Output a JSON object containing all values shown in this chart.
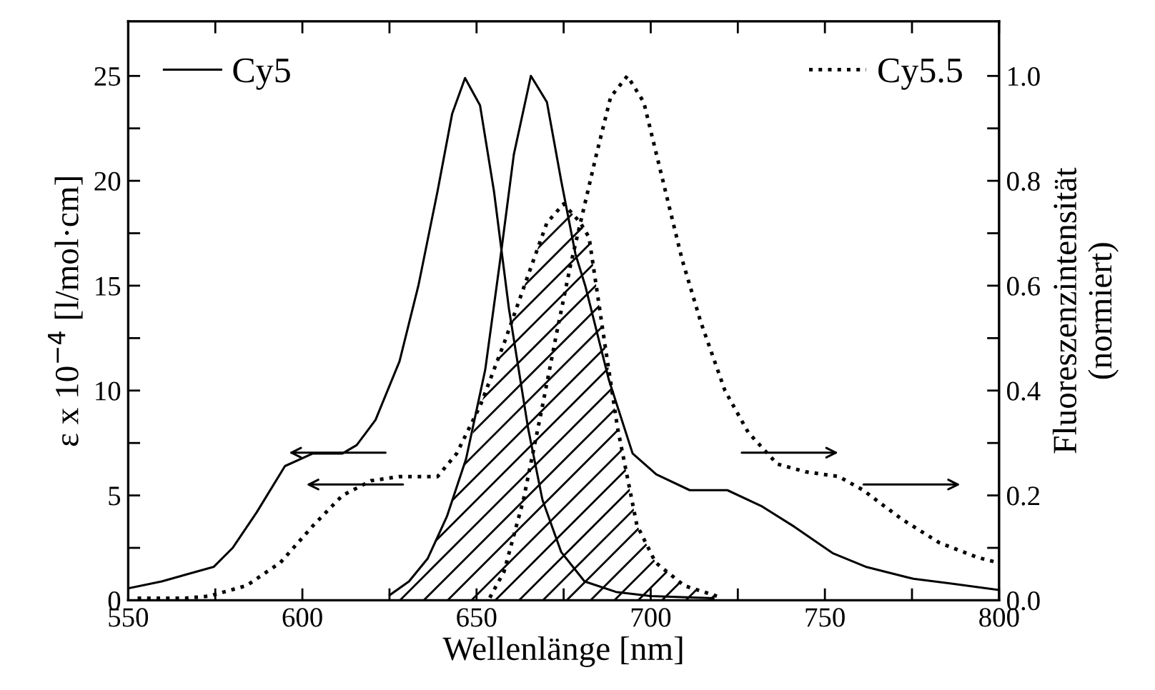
{
  "chart_data": {
    "type": "line",
    "xlabel": "Wellenlänge [nm]",
    "ylabel": "ε x 10$^{−4}$ [l/mol·cm]",
    "y2label": "Fluoreszenzintensität\n(normiert)",
    "xlim": [
      550,
      800
    ],
    "xticks": [
      550,
      {
        "value": 575,
        "label": null
      },
      600,
      {
        "value": 625,
        "label": null
      },
      650,
      {
        "value": 675,
        "label": null
      },
      700,
      {
        "value": 725,
        "label": null
      },
      750,
      {
        "value": 775,
        "label": null
      },
      800
    ],
    "ylim": [
      0,
      27.6
    ],
    "yticks": [
      0,
      {
        "value": 2.5,
        "label": null
      },
      5,
      {
        "value": 7.5,
        "label": null
      },
      10,
      {
        "value": 12.5,
        "label": null
      },
      15,
      {
        "value": 17.5,
        "label": null
      },
      20,
      {
        "value": 22.5,
        "label": null
      },
      25
    ],
    "y2lim": [
      0,
      1.104
    ],
    "y2ticks": [
      {
        "value": 0,
        "label": "0.0"
      },
      {
        "value": 0.1,
        "label": null
      },
      0.2,
      {
        "value": 0.3,
        "label": null
      },
      0.4,
      {
        "value": 0.5,
        "label": null
      },
      0.6,
      {
        "value": 0.7,
        "label": null
      },
      0.8,
      {
        "value": 0.9,
        "label": null
      },
      {
        "value": 1.0,
        "label": "1.0"
      }
    ],
    "legend": "top",
    "grid": false,
    "series": [
      {
        "name": "Cy5",
        "line_style": "solid",
        "color": "#000000",
        "x": [
          550,
          559.6,
          574.6,
          580,
          586.9,
          595,
          603,
          611.5,
          615.6,
          621,
          627.9,
          633.3,
          638.8,
          643,
          646.7,
          651,
          655,
          659.3,
          664.8,
          668.9,
          674.3,
          681,
          690,
          700,
          718
        ],
        "values": [
          0.57,
          0.9,
          1.6,
          2.5,
          4.2,
          6.4,
          7.0,
          7.0,
          7.4,
          8.6,
          11.4,
          15,
          19.5,
          23.2,
          24.9,
          23.6,
          19.5,
          13.9,
          8.2,
          4.8,
          2.3,
          0.9,
          0.4,
          0.2,
          0.1
        ]
      },
      {
        "line_style": "solid",
        "color": "#000000",
        "axis": "y2",
        "x": [
          625.1,
          630.6,
          636,
          641.5,
          647,
          652.5,
          656.6,
          660.7,
          665.6,
          670.2,
          674.3,
          678.4,
          681.2,
          688,
          694.8,
          701.6,
          711.2,
          722,
          731.7,
          741.3,
          752.2,
          761.7,
          775.4,
          786.3,
          799.7
        ],
        "values": [
          0.01,
          0.036,
          0.08,
          0.16,
          0.27,
          0.44,
          0.64,
          0.85,
          1.0,
          0.95,
          0.8,
          0.66,
          0.6,
          0.42,
          0.28,
          0.24,
          0.21,
          0.21,
          0.18,
          0.14,
          0.09,
          0.064,
          0.041,
          0.032,
          0.02
        ]
      },
      {
        "name": "Cy5.5",
        "line_style": "dotted",
        "color": "#000000",
        "x": [
          552.7,
          566.4,
          573.2,
          584,
          593.7,
          603.3,
          611.5,
          619.7,
          627.9,
          638.8,
          644.3,
          651.1,
          658,
          664.8,
          670.2,
          675,
          679.8,
          682.3,
          686.4,
          690.5,
          696,
          701.4,
          709.6,
          719
        ],
        "values": [
          0.1,
          0.1,
          0.2,
          0.7,
          1.8,
          3.6,
          5.0,
          5.7,
          5.9,
          5.9,
          7.0,
          9.3,
          12.3,
          15.5,
          18.0,
          18.9,
          18.0,
          17.3,
          12.7,
          8.2,
          3.6,
          1.8,
          0.7,
          0.2
        ]
      },
      {
        "line_style": "dotted",
        "color": "#000000",
        "axis": "y2",
        "x": [
          653.8,
          657.9,
          663.4,
          668.9,
          673,
          677,
          684.4,
          688.5,
          693.3,
          698,
          703.5,
          709,
          714.4,
          721.3,
          728,
          736.3,
          744.5,
          754,
          761,
          772,
          782.8,
          793.7,
          799
        ],
        "values": [
          0.005,
          0.055,
          0.19,
          0.37,
          0.51,
          0.64,
          0.85,
          0.96,
          1.0,
          0.95,
          0.8,
          0.65,
          0.53,
          0.4,
          0.32,
          0.26,
          0.245,
          0.236,
          0.21,
          0.155,
          0.11,
          0.082,
          0.073
        ]
      },
      {
        "type": "area",
        "color": "#000000",
        "x": [
          625,
          630.6,
          636,
          641.5,
          647,
          651.1,
          658,
          664.8,
          670.2,
          675,
          679.8,
          682.3,
          686.4,
          690.5,
          696,
          701.4,
          709.6,
          719
        ],
        "values": [
          0,
          0.9,
          2.0,
          4.0,
          6.75,
          9.3,
          12.3,
          15.5,
          18.0,
          18.9,
          18.0,
          17.3,
          12.7,
          8.2,
          3.6,
          1.8,
          0.7,
          0.2
        ]
      }
    ]
  }
}
